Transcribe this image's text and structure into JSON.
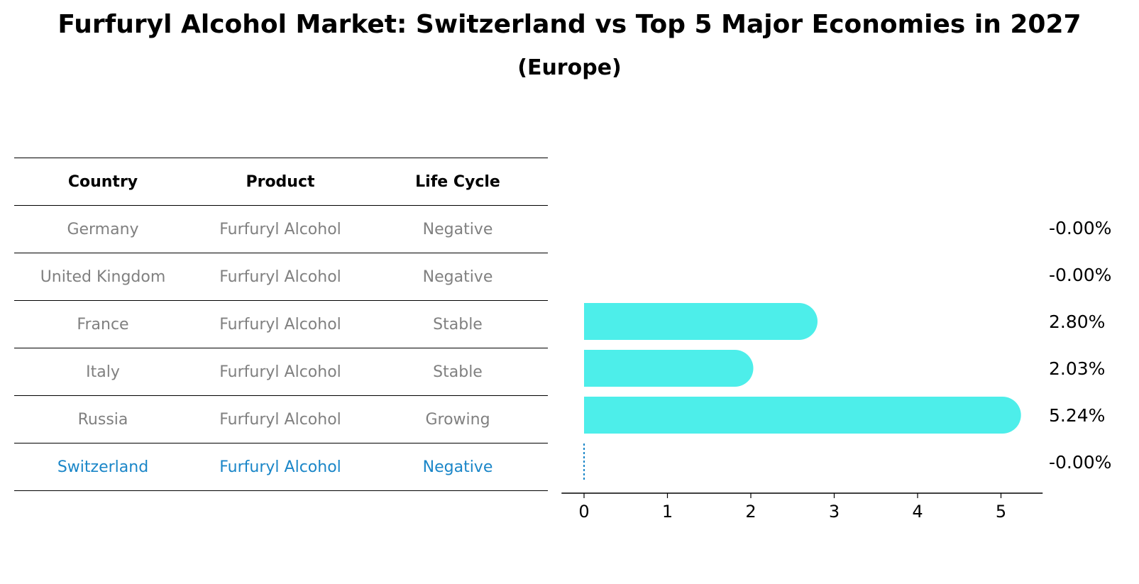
{
  "title": "Furfuryl Alcohol Market: Switzerland vs Top 5 Major Economies in 2027",
  "subtitle": "(Europe)",
  "table": {
    "headers": [
      "Country",
      "Product",
      "Life Cycle"
    ],
    "rows": [
      {
        "country": "Germany",
        "product": "Furfuryl Alcohol",
        "life_cycle": "Negative"
      },
      {
        "country": "United Kingdom",
        "product": "Furfuryl Alcohol",
        "life_cycle": "Negative"
      },
      {
        "country": "France",
        "product": "Furfuryl Alcohol",
        "life_cycle": "Stable"
      },
      {
        "country": "Italy",
        "product": "Furfuryl Alcohol",
        "life_cycle": "Stable"
      },
      {
        "country": "Russia",
        "product": "Furfuryl Alcohol",
        "life_cycle": "Growing"
      },
      {
        "country": "Switzerland",
        "product": "Furfuryl Alcohol",
        "life_cycle": "Negative"
      }
    ],
    "highlight_row": 5
  },
  "colors": {
    "bar": "#4deeea",
    "highlight": "#1a86c8",
    "muted_text": "#808080"
  },
  "chart_data": {
    "type": "bar",
    "orientation": "horizontal",
    "categories": [
      "Germany",
      "United Kingdom",
      "France",
      "Italy",
      "Russia",
      "Switzerland"
    ],
    "values": [
      0,
      0,
      2.8,
      2.03,
      5.24,
      0
    ],
    "value_labels": [
      "-0.00%",
      "-0.00%",
      "2.80%",
      "2.03%",
      "5.24%",
      "-0.00%"
    ],
    "xlim": [
      -0.27,
      5.5
    ],
    "xticks": [
      "0",
      "1",
      "2",
      "3",
      "4",
      "5"
    ],
    "grid": false
  }
}
